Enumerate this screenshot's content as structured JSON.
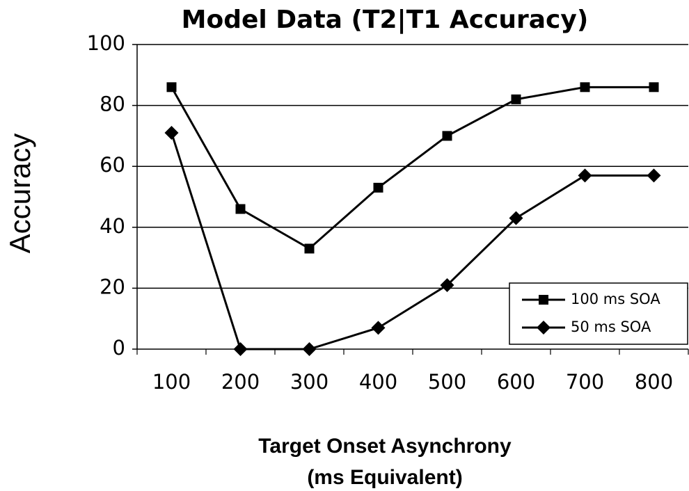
{
  "chart_data": {
    "type": "line",
    "title": "Model Data (T2|T1 Accuracy)",
    "ylabel": "Accuracy",
    "xlabel": [
      "Target Onset Asynchrony",
      "(ms Equivalent)"
    ],
    "categories": [
      "100",
      "200",
      "300",
      "400",
      "500",
      "600",
      "700",
      "800"
    ],
    "series": [
      {
        "name": "100 ms SOA",
        "color": "#000000",
        "marker": "square",
        "values": [
          86,
          46,
          33,
          53,
          70,
          82,
          86,
          86
        ]
      },
      {
        "name": "50 ms SOA",
        "color": "#000000",
        "marker": "diamond",
        "values": [
          71,
          0,
          0,
          7,
          21,
          43,
          57,
          57
        ]
      }
    ],
    "ylim": [
      0,
      100
    ],
    "yticks": [
      0,
      20,
      40,
      60,
      80,
      100
    ],
    "grid": true,
    "legend": "lower right"
  }
}
